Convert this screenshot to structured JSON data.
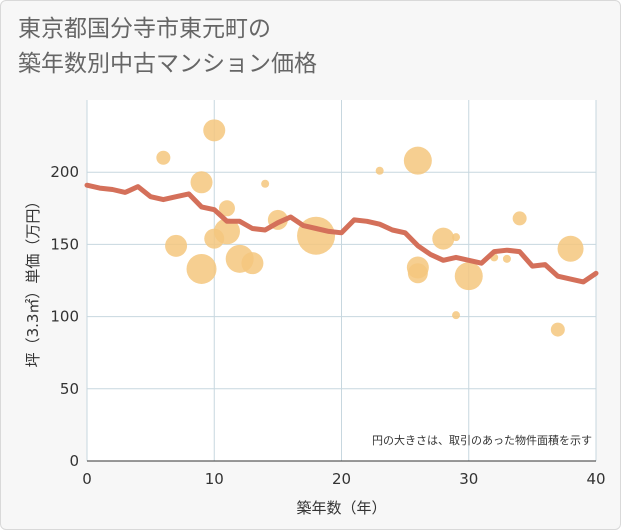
{
  "chart_data": {
    "type": "scatter",
    "title_lines": [
      "東京都国分寺市東元町の",
      "築年数別中古マンション価格"
    ],
    "xlabel": "築年数（年）",
    "ylabel": "坪（3.3㎡）単価（万円）",
    "note": "円の大きさは、取引のあった物件面積を示す",
    "xlim": [
      0,
      40
    ],
    "ylim": [
      0,
      250
    ],
    "xticks": [
      0,
      10,
      20,
      30,
      40
    ],
    "yticks": [
      0,
      50,
      100,
      150,
      200
    ],
    "grid": true,
    "colors": {
      "bubble": "#f5c77e",
      "line": "#d4705a",
      "grid": "#c7d7df",
      "plot_bg": "#ffffff"
    },
    "points": [
      {
        "x": 6,
        "y": 210,
        "size": 7
      },
      {
        "x": 7,
        "y": 149,
        "size": 11
      },
      {
        "x": 9,
        "y": 193,
        "size": 11
      },
      {
        "x": 9,
        "y": 133,
        "size": 15
      },
      {
        "x": 10,
        "y": 229,
        "size": 11
      },
      {
        "x": 10,
        "y": 154,
        "size": 10
      },
      {
        "x": 11,
        "y": 175,
        "size": 8
      },
      {
        "x": 11,
        "y": 159,
        "size": 13
      },
      {
        "x": 12,
        "y": 140,
        "size": 14
      },
      {
        "x": 13,
        "y": 137,
        "size": 11
      },
      {
        "x": 14,
        "y": 192,
        "size": 4
      },
      {
        "x": 15,
        "y": 167,
        "size": 10
      },
      {
        "x": 18,
        "y": 156,
        "size": 19
      },
      {
        "x": 23,
        "y": 201,
        "size": 4
      },
      {
        "x": 26,
        "y": 208,
        "size": 14
      },
      {
        "x": 26,
        "y": 134,
        "size": 11
      },
      {
        "x": 26,
        "y": 130,
        "size": 10
      },
      {
        "x": 28,
        "y": 154,
        "size": 11
      },
      {
        "x": 29,
        "y": 155,
        "size": 4
      },
      {
        "x": 29,
        "y": 101,
        "size": 4
      },
      {
        "x": 30,
        "y": 128,
        "size": 14
      },
      {
        "x": 32,
        "y": 141,
        "size": 4
      },
      {
        "x": 33,
        "y": 140,
        "size": 4
      },
      {
        "x": 34,
        "y": 168,
        "size": 7
      },
      {
        "x": 37,
        "y": 91,
        "size": 7
      },
      {
        "x": 38,
        "y": 147,
        "size": 13
      }
    ],
    "trend": {
      "x": [
        0,
        1,
        2,
        3,
        4,
        5,
        6,
        7,
        8,
        9,
        10,
        11,
        12,
        13,
        14,
        15,
        16,
        17,
        18,
        19,
        20,
        21,
        22,
        23,
        24,
        25,
        26,
        27,
        28,
        29,
        30,
        31,
        32,
        33,
        34,
        35,
        36,
        37,
        38,
        39,
        40
      ],
      "y": [
        191,
        189,
        188,
        186,
        190,
        183,
        181,
        183,
        185,
        176,
        174,
        166,
        166,
        161,
        160,
        165,
        169,
        163,
        161,
        159,
        158,
        167,
        166,
        164,
        160,
        158,
        149,
        143,
        139,
        141,
        139,
        137,
        145,
        146,
        145,
        135,
        136,
        128,
        126,
        124,
        130
      ]
    }
  }
}
